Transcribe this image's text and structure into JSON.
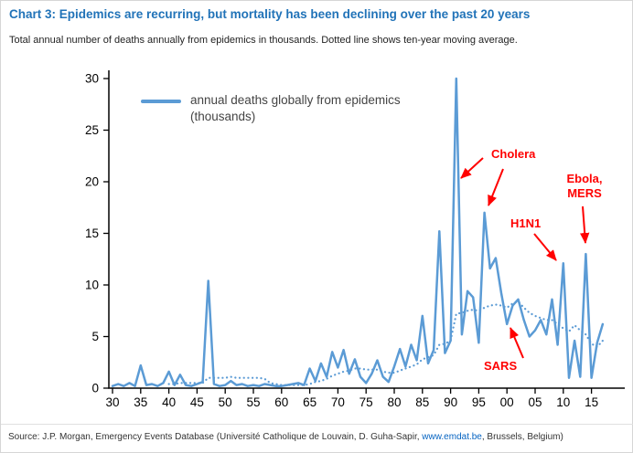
{
  "title": "Chart 3: Epidemics are recurring, but mortality has been declining over the past 20 years",
  "subtitle": "Total annual number of deaths annually from epidemics in thousands. Dotted line shows ten-year moving average.",
  "legend": {
    "line1": "annual deaths globally from epidemics",
    "line2": "(thousands)"
  },
  "source": {
    "prefix": "Source: J.P. Morgan, Emergency Events Database (Université Catholique de Louvain, D. Guha-Sapir, ",
    "link": "www.emdat.be",
    "suffix": ", Brussels, Belgium)"
  },
  "colors": {
    "title": "#2173b8",
    "line": "#5b9bd5",
    "annotation": "#ff0000",
    "link": "#0563c1",
    "axis": "#000000"
  },
  "chart_data": {
    "type": "line",
    "title": "Chart 3: Epidemics are recurring, but mortality has been declining over the past 20 years",
    "xlabel": "",
    "ylabel": "",
    "ylim": [
      0,
      30
    ],
    "y_ticks": [
      0,
      5,
      10,
      15,
      20,
      25,
      30
    ],
    "x_tick_labels": [
      "30",
      "35",
      "40",
      "45",
      "50",
      "55",
      "60",
      "65",
      "70",
      "75",
      "80",
      "85",
      "90",
      "95",
      "00",
      "05",
      "10",
      "15"
    ],
    "x_tick_years": [
      1930,
      1935,
      1940,
      1945,
      1950,
      1955,
      1960,
      1965,
      1970,
      1975,
      1980,
      1985,
      1990,
      1995,
      2000,
      2005,
      2010,
      2015
    ],
    "grid": false,
    "legend_position": "top-left-inside",
    "x": [
      1930,
      1931,
      1932,
      1933,
      1934,
      1935,
      1936,
      1937,
      1938,
      1939,
      1940,
      1941,
      1942,
      1943,
      1944,
      1945,
      1946,
      1947,
      1948,
      1949,
      1950,
      1951,
      1952,
      1953,
      1954,
      1955,
      1956,
      1957,
      1958,
      1959,
      1960,
      1961,
      1962,
      1963,
      1964,
      1965,
      1966,
      1967,
      1968,
      1969,
      1970,
      1971,
      1972,
      1973,
      1974,
      1975,
      1976,
      1977,
      1978,
      1979,
      1980,
      1981,
      1982,
      1983,
      1984,
      1985,
      1986,
      1987,
      1988,
      1989,
      1990,
      1991,
      1992,
      1993,
      1994,
      1995,
      1996,
      1997,
      1998,
      1999,
      2000,
      2001,
      2002,
      2003,
      2004,
      2005,
      2006,
      2007,
      2008,
      2009,
      2010,
      2011,
      2012,
      2013,
      2014,
      2015,
      2016,
      2017
    ],
    "series": [
      {
        "name": "annual deaths globally from epidemics (thousands)",
        "style": "solid",
        "values": [
          0.2,
          0.4,
          0.2,
          0.5,
          0.2,
          2.2,
          0.3,
          0.4,
          0.2,
          0.5,
          1.6,
          0.3,
          1.3,
          0.3,
          0.2,
          0.4,
          0.6,
          10.4,
          0.4,
          0.2,
          0.3,
          0.7,
          0.3,
          0.4,
          0.2,
          0.3,
          0.2,
          0.4,
          0.3,
          0.2,
          0.2,
          0.3,
          0.4,
          0.5,
          0.3,
          1.9,
          0.7,
          2.4,
          1.1,
          3.5,
          2.0,
          3.7,
          1.4,
          2.8,
          1.1,
          0.5,
          1.4,
          2.7,
          1.1,
          0.6,
          2.1,
          3.8,
          2.1,
          4.2,
          2.7,
          7.0,
          2.4,
          3.7,
          15.2,
          3.4,
          4.6,
          30.0,
          5.2,
          9.4,
          8.8,
          4.4,
          17.0,
          11.6,
          12.6,
          9.2,
          6.2,
          8.0,
          8.6,
          6.6,
          5.0,
          5.6,
          6.6,
          5.2,
          8.6,
          4.2,
          12.1,
          1.0,
          4.6,
          1.1,
          13.0,
          1.0,
          4.4,
          6.2
        ]
      },
      {
        "name": "ten-year moving average",
        "style": "dotted",
        "values": [
          null,
          null,
          null,
          null,
          null,
          null,
          null,
          null,
          null,
          null,
          0.4,
          0.4,
          0.5,
          0.5,
          0.5,
          0.5,
          0.5,
          1.0,
          1.0,
          1.0,
          1.0,
          1.1,
          1.0,
          1.0,
          1.0,
          1.0,
          1.0,
          0.9,
          0.5,
          0.4,
          0.3,
          0.3,
          0.3,
          0.3,
          0.3,
          0.4,
          0.6,
          0.7,
          0.9,
          1.2,
          1.4,
          1.6,
          1.7,
          1.9,
          1.9,
          1.8,
          1.8,
          1.8,
          1.6,
          1.5,
          1.5,
          1.7,
          1.9,
          2.1,
          2.3,
          2.8,
          3.0,
          3.2,
          4.2,
          4.3,
          4.6,
          7.2,
          7.3,
          7.5,
          7.6,
          7.5,
          7.8,
          8.0,
          8.1,
          8.0,
          7.8,
          8.2,
          8.4,
          7.8,
          7.3,
          7.0,
          6.8,
          6.6,
          6.6,
          6.2,
          5.8,
          5.5,
          6.1,
          5.6,
          5.2,
          4.3,
          4.0,
          4.6
        ]
      }
    ],
    "annotations": {
      "cholera": {
        "label": "Cholera"
      },
      "ebola_mers": {
        "line1": "Ebola,",
        "line2": "MERS"
      },
      "h1n1": {
        "label": "H1N1"
      },
      "sars": {
        "label": "SARS"
      }
    }
  }
}
